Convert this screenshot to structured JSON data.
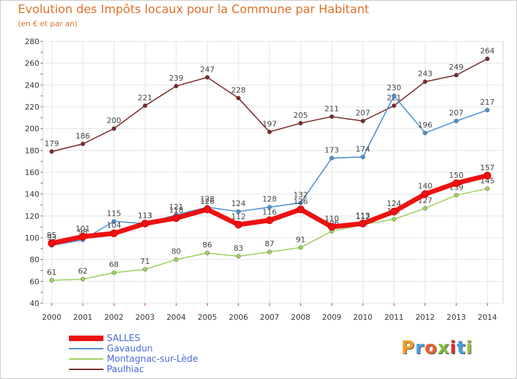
{
  "title": "Evolution des Impôts locaux pour la Commune par Habitant",
  "subtitle": "(en € et par an)",
  "logo": {
    "letters": [
      "P",
      "r",
      "o",
      "x",
      "i",
      "t",
      "i"
    ],
    "colors": [
      "#f0a020",
      "#4aa0e0",
      "#f06030",
      "#7cc040",
      "#e0302a",
      "#4aa0e0",
      "#9cc040"
    ]
  },
  "chart_data": {
    "type": "line",
    "x": [
      2000,
      2001,
      2002,
      2003,
      2004,
      2005,
      2006,
      2007,
      2008,
      2009,
      2010,
      2011,
      2012,
      2013,
      2014
    ],
    "ylim": [
      40,
      280
    ],
    "yticks": [
      40,
      60,
      80,
      100,
      120,
      140,
      160,
      180,
      200,
      220,
      240,
      260,
      280
    ],
    "grid": true,
    "legend_position": "bottom-left",
    "series": [
      {
        "name": "Paulhiac",
        "color": "#7a2a2a",
        "values": [
          179,
          186,
          200,
          221,
          239,
          247,
          228,
          197,
          205,
          211,
          207,
          221,
          243,
          249,
          264
        ]
      },
      {
        "name": "Gavaudun",
        "color": "#4a90d0",
        "values": [
          93,
          98,
          115,
          113,
          121,
          128,
          124,
          128,
          132,
          173,
          174,
          230,
          196,
          207,
          217
        ]
      },
      {
        "name": "Montagnac-sur-Lède",
        "color": "#9ed060",
        "values": [
          61,
          62,
          68,
          71,
          80,
          86,
          83,
          87,
          91,
          106,
          112,
          117,
          127,
          139,
          145
        ]
      },
      {
        "name": "SALLES",
        "color": "#ee1111",
        "values": [
          95,
          101,
          104,
          113,
          118,
          126,
          112,
          116,
          126,
          110,
          113,
          124,
          140,
          150,
          157
        ]
      }
    ]
  }
}
